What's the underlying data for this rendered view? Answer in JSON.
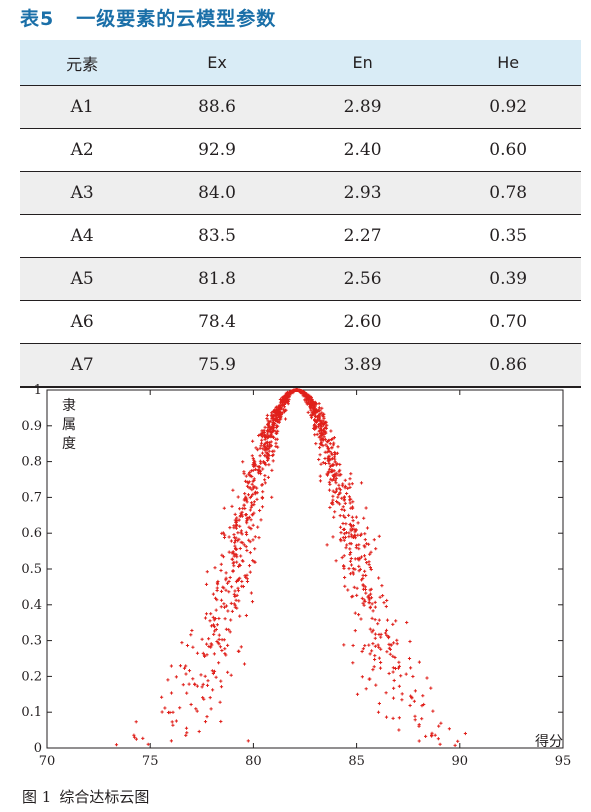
{
  "table": {
    "title_label": "表5",
    "title_text": "一级要素的云模型参数",
    "headers": [
      "元素",
      "Ex",
      "En",
      "He"
    ],
    "rows": [
      [
        "A1",
        "88.6",
        "2.89",
        "0.92"
      ],
      [
        "A2",
        "92.9",
        "2.40",
        "0.60"
      ],
      [
        "A3",
        "84.0",
        "2.93",
        "0.78"
      ],
      [
        "A4",
        "83.5",
        "2.27",
        "0.35"
      ],
      [
        "A5",
        "81.8",
        "2.56",
        "0.39"
      ],
      [
        "A6",
        "78.4",
        "2.60",
        "0.70"
      ],
      [
        "A7",
        "75.9",
        "3.89",
        "0.86"
      ]
    ]
  },
  "figure": {
    "caption_label": "图 1",
    "caption_text": "综合达标云图"
  },
  "chart_data": {
    "type": "scatter",
    "title": "",
    "xlabel": "得分",
    "ylabel": "隶属度",
    "xlim": [
      70,
      95
    ],
    "ylim": [
      0,
      1
    ],
    "x_ticks": [
      "70",
      "75",
      "80",
      "85",
      "90",
      "95"
    ],
    "y_ticks": [
      "0",
      "0.1",
      "0.2",
      "0.3",
      "0.4",
      "0.5",
      "0.6",
      "0.7",
      "0.8",
      "0.9",
      "1"
    ],
    "grid": false,
    "point_color": "#e0201b",
    "cloud_model": {
      "Ex": 82.1,
      "En": 2.6,
      "He": 0.45,
      "drops": 1500
    }
  }
}
